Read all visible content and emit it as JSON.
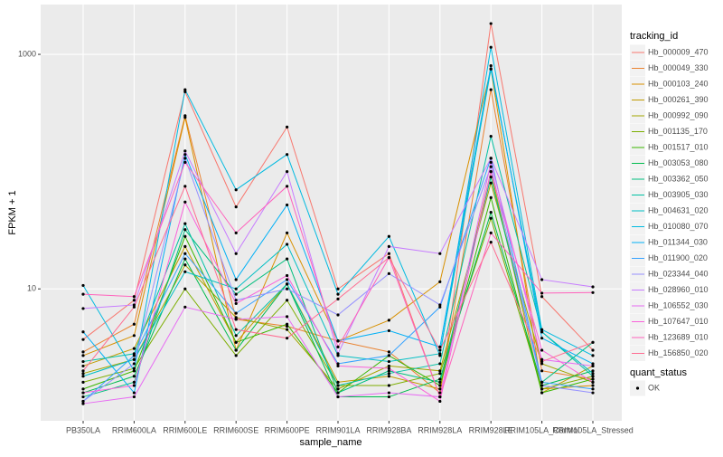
{
  "chart_data": {
    "type": "line",
    "x_label": "sample_name",
    "y_label": "FPKM + 1",
    "categories": [
      "PB350LA",
      "RRIM600LA",
      "RRIM600LE",
      "RRIM600SE",
      "RRIM600PE",
      "RRIM901LA",
      "RRIM928BA",
      "RRIM928LA",
      "RRIM928LE",
      "RRIM105LA_Control",
      "RRIM105LA_Stressed"
    ],
    "ylim": [
      0.75,
      2660
    ],
    "yticks": [
      10,
      1000
    ],
    "log_y": true,
    "grid": true,
    "point_color": "#000000",
    "legend_title": "tracking_id",
    "series": [
      {
        "name": "Hb_000009_470",
        "color": "#F8766D",
        "values": [
          3.7,
          8.0,
          480,
          50,
          240,
          10,
          20,
          1.2,
          1830,
          8.6,
          3.0
        ]
      },
      {
        "name": "Hb_000049_330",
        "color": "#EA8331",
        "values": [
          2.9,
          5.0,
          300,
          5.5,
          4.8,
          3.6,
          2.9,
          1.3,
          500,
          2.0,
          1.7
        ]
      },
      {
        "name": "Hb_000103_240",
        "color": "#D89000",
        "values": [
          2.7,
          4.0,
          290,
          3.0,
          30,
          3.6,
          5.4,
          11.5,
          750,
          1.4,
          1.5
        ]
      },
      {
        "name": "Hb_000261_390",
        "color": "#C09B00",
        "values": [
          2.2,
          3.1,
          23,
          3.5,
          11,
          1.6,
          1.8,
          1.4,
          100,
          1.3,
          2.2
        ]
      },
      {
        "name": "Hb_000992_090",
        "color": "#A3A500",
        "values": [
          1.9,
          2.5,
          16,
          5.7,
          4.5,
          1.4,
          2.2,
          2.0,
          80,
          2.3,
          1.6
        ]
      },
      {
        "name": "Hb_001135_170",
        "color": "#7CAE00",
        "values": [
          1.6,
          2.1,
          10,
          2.7,
          8,
          1.5,
          1.5,
          1.9,
          40,
          1.4,
          1.8
        ]
      },
      {
        "name": "Hb_001517_010",
        "color": "#39B600",
        "values": [
          1.4,
          2.0,
          28,
          3.5,
          5,
          1.3,
          2.7,
          1.5,
          60,
          1.3,
          1.7
        ]
      },
      {
        "name": "Hb_003053_080",
        "color": "#00BB4E",
        "values": [
          1.3,
          1.8,
          18,
          3.0,
          11,
          1.2,
          1.2,
          1.7,
          45,
          1.5,
          2.0
        ]
      },
      {
        "name": "Hb_003362_050",
        "color": "#00BF7D",
        "values": [
          1.2,
          1.6,
          32,
          9.0,
          18,
          1.3,
          2.0,
          1.6,
          90,
          1.6,
          3.5
        ]
      },
      {
        "name": "Hb_003905_030",
        "color": "#00C1A3",
        "values": [
          2.4,
          2.8,
          36,
          4.0,
          11,
          1.5,
          1.9,
          2.3,
          200,
          4.3,
          1.8
        ]
      },
      {
        "name": "Hb_004631_020",
        "color": "#00BFC4",
        "values": [
          1.8,
          2.5,
          14,
          10.0,
          24,
          2.7,
          2.4,
          2.8,
          750,
          4.3,
          1.9
        ]
      },
      {
        "name": "Hb_010080_070",
        "color": "#00BAE0",
        "values": [
          10.7,
          2.0,
          500,
          70,
          140,
          9,
          28,
          2.7,
          1150,
          4.5,
          2.7
        ]
      },
      {
        "name": "Hb_011344_030",
        "color": "#00B0F6",
        "values": [
          4.3,
          1.3,
          140,
          12,
          52,
          3.6,
          4.4,
          3.2,
          800,
          3.8,
          2.3
        ]
      },
      {
        "name": "Hb_011900_020",
        "color": "#35A2FF",
        "values": [
          1.1,
          2.7,
          20,
          6.2,
          12,
          2.3,
          2.7,
          7.0,
          130,
          1.6,
          1.4
        ]
      },
      {
        "name": "Hb_023344_040",
        "color": "#9590FF",
        "values": [
          1.1,
          2.3,
          130,
          8.0,
          10,
          6.0,
          13.5,
          7.3,
          110,
          1.5,
          1.3
        ]
      },
      {
        "name": "Hb_028960_010",
        "color": "#C77CFF",
        "values": [
          6.8,
          7.3,
          150,
          20,
          100,
          2.8,
          23,
          20,
          130,
          12,
          10.4
        ]
      },
      {
        "name": "Hb_106552_030",
        "color": "#E76BF3",
        "values": [
          1.05,
          1.2,
          7.0,
          5.5,
          5.8,
          1.2,
          1.3,
          1.2,
          120,
          2.5,
          2.2
        ]
      },
      {
        "name": "Hb_107647_010",
        "color": "#FA62DB",
        "values": [
          1.3,
          1.5,
          55,
          7.5,
          13,
          2.2,
          2.1,
          1.1,
          100,
          3.0,
          1.6
        ]
      },
      {
        "name": "Hb_123689_010",
        "color": "#FF62BC",
        "values": [
          9.0,
          8.6,
          120,
          30,
          75,
          3.2,
          18.5,
          1.2,
          30,
          9.2,
          9.3
        ]
      },
      {
        "name": "Hb_156850_020",
        "color": "#FF6C91",
        "values": [
          2.0,
          7.0,
          75,
          4.5,
          3.8,
          8.2,
          18.5,
          3.0,
          25,
          2.4,
          3.5
        ]
      }
    ],
    "legend2_title": "quant_status",
    "legend2_items": [
      "OK"
    ]
  }
}
